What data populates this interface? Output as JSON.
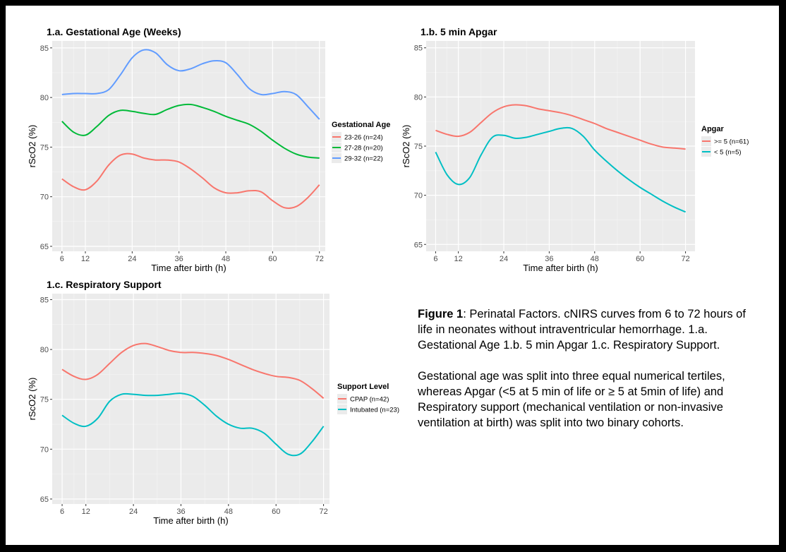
{
  "caption": {
    "fig_label": "Figure 1",
    "fig_text": ": Perinatal Factors. cNIRS curves from 6 to 72 hours of life in neonates without intraventricular hemorrhage.  1.a. Gestational Age 1.b. 5 min Apgar 1.c. Respiratory Support.",
    "paragraph2": "Gestational age was split into three equal numerical tertiles, whereas Apgar  (<5 at 5 min of life or ≥ 5 at 5min of life) and Respiratory support (mechanical ventilation or non-invasive ventilation at birth) was split into two binary cohorts."
  },
  "chart_data": [
    {
      "type": "line",
      "title": "1.a. Gestational Age (Weeks)",
      "xlabel": "Time after birth (h)",
      "ylabel": "rScO2 (%)",
      "xlim": [
        3.5,
        73.5
      ],
      "ylim": [
        64.5,
        85.7
      ],
      "xticks": [
        6,
        12,
        24,
        36,
        48,
        60,
        72
      ],
      "yticks": [
        65,
        70,
        75,
        80,
        85
      ],
      "grid": true,
      "legend_title": "Gestational Age",
      "legend_position": "right",
      "x": [
        6,
        9,
        12,
        15,
        18,
        21,
        24,
        27,
        30,
        33,
        36,
        39,
        42,
        45,
        48,
        51,
        54,
        57,
        60,
        63,
        66,
        69,
        72
      ],
      "series": [
        {
          "name": "23-26 (n=24)",
          "color": "#F8766D",
          "values": [
            71.8,
            71.0,
            70.7,
            71.6,
            73.2,
            74.2,
            74.3,
            73.9,
            73.7,
            73.7,
            73.5,
            72.8,
            71.9,
            70.9,
            70.4,
            70.4,
            70.6,
            70.5,
            69.6,
            68.9,
            69.0,
            69.9,
            71.2
          ]
        },
        {
          "name": "27-28 (n=20)",
          "color": "#00BA38",
          "values": [
            77.6,
            76.5,
            76.2,
            77.1,
            78.2,
            78.7,
            78.6,
            78.4,
            78.3,
            78.8,
            79.2,
            79.3,
            79.0,
            78.6,
            78.1,
            77.7,
            77.3,
            76.6,
            75.7,
            74.9,
            74.3,
            74.0,
            73.9
          ]
        },
        {
          "name": "29-32 (n=22)",
          "color": "#619CFF",
          "values": [
            80.3,
            80.4,
            80.4,
            80.4,
            80.8,
            82.3,
            84.0,
            84.8,
            84.5,
            83.3,
            82.7,
            82.9,
            83.4,
            83.7,
            83.5,
            82.3,
            80.9,
            80.3,
            80.4,
            80.6,
            80.3,
            79.1,
            77.8
          ]
        }
      ]
    },
    {
      "type": "line",
      "title": "1.b. 5 min Apgar",
      "xlabel": "Time after birth (h)",
      "ylabel": "rScO2 (%)",
      "xlim": [
        3.5,
        74.5
      ],
      "ylim": [
        64.3,
        85.7
      ],
      "xticks": [
        6,
        12,
        24,
        36,
        48,
        60,
        72
      ],
      "yticks": [
        65,
        70,
        75,
        80,
        85
      ],
      "grid": true,
      "legend_title": "Apgar",
      "legend_position": "right",
      "x": [
        6,
        9,
        12,
        15,
        18,
        21,
        24,
        27,
        30,
        33,
        36,
        39,
        42,
        45,
        48,
        51,
        54,
        57,
        60,
        63,
        66,
        69,
        72
      ],
      "series": [
        {
          "name": ">= 5 (n=61)",
          "color": "#F8766D",
          "values": [
            76.6,
            76.2,
            76.0,
            76.4,
            77.4,
            78.4,
            79.0,
            79.2,
            79.1,
            78.8,
            78.6,
            78.4,
            78.1,
            77.7,
            77.3,
            76.8,
            76.4,
            76.0,
            75.6,
            75.2,
            74.9,
            74.8,
            74.7
          ]
        },
        {
          "name": "< 5 (n=5)",
          "color": "#00BFC4",
          "values": [
            74.4,
            72.1,
            71.1,
            71.8,
            74.1,
            75.9,
            76.1,
            75.8,
            75.9,
            76.2,
            76.5,
            76.8,
            76.8,
            76.0,
            74.6,
            73.5,
            72.5,
            71.6,
            70.8,
            70.1,
            69.4,
            68.8,
            68.3
          ]
        }
      ]
    },
    {
      "type": "line",
      "title": "1.c. Respiratory Support",
      "xlabel": "Time after birth (h)",
      "ylabel": "rScO2 (%)",
      "xlim": [
        3.5,
        73.5
      ],
      "ylim": [
        64.5,
        85.6
      ],
      "xticks": [
        6,
        12,
        24,
        36,
        48,
        60,
        72
      ],
      "yticks": [
        65,
        70,
        75,
        80,
        85
      ],
      "grid": true,
      "legend_title": "Support Level",
      "legend_position": "right",
      "x": [
        6,
        9,
        12,
        15,
        18,
        21,
        24,
        27,
        30,
        33,
        36,
        39,
        42,
        45,
        48,
        51,
        54,
        57,
        60,
        63,
        66,
        69,
        72
      ],
      "series": [
        {
          "name": "CPAP (n=42)",
          "color": "#F8766D",
          "values": [
            78.0,
            77.3,
            77.0,
            77.5,
            78.6,
            79.7,
            80.4,
            80.6,
            80.3,
            79.9,
            79.7,
            79.7,
            79.6,
            79.4,
            79.0,
            78.5,
            78.0,
            77.6,
            77.3,
            77.2,
            76.9,
            76.1,
            75.1
          ]
        },
        {
          "name": "Intubated (n=23)",
          "color": "#00BFC4",
          "values": [
            73.4,
            72.6,
            72.3,
            73.1,
            74.8,
            75.5,
            75.5,
            75.4,
            75.4,
            75.5,
            75.6,
            75.3,
            74.4,
            73.3,
            72.5,
            72.1,
            72.1,
            71.6,
            70.5,
            69.5,
            69.5,
            70.7,
            72.3
          ]
        }
      ]
    }
  ]
}
